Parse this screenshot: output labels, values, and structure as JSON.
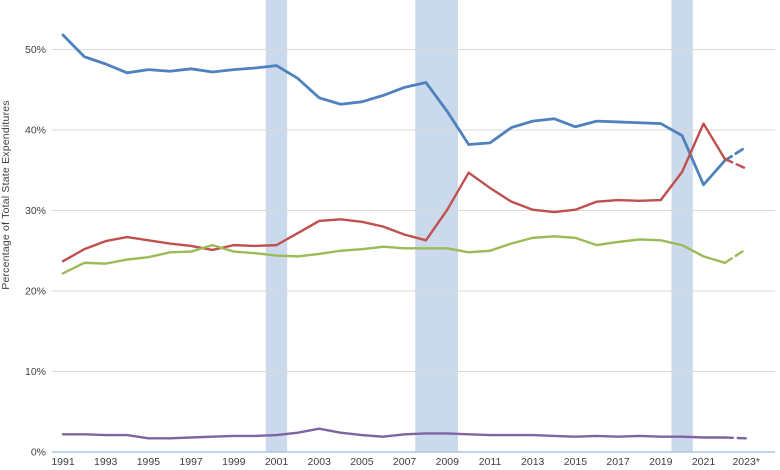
{
  "chart_data": {
    "type": "line",
    "title": "",
    "ylabel": "Percentage of Total State Expenditures",
    "xlabel": "",
    "legend": "none",
    "grid": "horizontal",
    "ylim": [
      0,
      56
    ],
    "dashed_last_segment": true,
    "x": [
      1991,
      1992,
      1993,
      1994,
      1995,
      1996,
      1997,
      1998,
      1999,
      2000,
      2001,
      2002,
      2003,
      2004,
      2005,
      2006,
      2007,
      2008,
      2009,
      2010,
      2011,
      2012,
      2013,
      2014,
      2015,
      2016,
      2017,
      2018,
      2019,
      2020,
      2021,
      2022,
      2023
    ],
    "x_ticks": [
      {
        "year": 1991,
        "label": "1991"
      },
      {
        "year": 1993,
        "label": "1993"
      },
      {
        "year": 1995,
        "label": "1995"
      },
      {
        "year": 1997,
        "label": "1997"
      },
      {
        "year": 1999,
        "label": "1999"
      },
      {
        "year": 2001,
        "label": "2001"
      },
      {
        "year": 2003,
        "label": "2003"
      },
      {
        "year": 2005,
        "label": "2005"
      },
      {
        "year": 2007,
        "label": "2007"
      },
      {
        "year": 2009,
        "label": "2009"
      },
      {
        "year": 2011,
        "label": "2011"
      },
      {
        "year": 2013,
        "label": "2013"
      },
      {
        "year": 2015,
        "label": "2015"
      },
      {
        "year": 2017,
        "label": "2017"
      },
      {
        "year": 2019,
        "label": "2019"
      },
      {
        "year": 2021,
        "label": "2021"
      },
      {
        "year": 2023,
        "label": "2023*"
      }
    ],
    "y_ticks": [
      {
        "value": 0,
        "label": "0%"
      },
      {
        "value": 10,
        "label": "10%"
      },
      {
        "value": 20,
        "label": "20%"
      },
      {
        "value": 30,
        "label": "30%"
      },
      {
        "value": 40,
        "label": "40%"
      },
      {
        "value": 50,
        "label": "50%"
      }
    ],
    "series": [
      {
        "name": "blue",
        "color": "#4F81BD",
        "values": [
          51.8,
          49.1,
          48.2,
          47.1,
          47.5,
          47.3,
          47.6,
          47.2,
          47.5,
          47.7,
          48.0,
          46.4,
          44.0,
          43.2,
          43.5,
          44.3,
          45.3,
          45.9,
          42.3,
          38.2,
          38.4,
          40.3,
          41.1,
          41.4,
          40.4,
          41.1,
          41.0,
          40.9,
          40.8,
          39.3,
          33.2,
          36.2,
          37.9
        ]
      },
      {
        "name": "red",
        "color": "#C0504D",
        "values": [
          23.7,
          25.2,
          26.2,
          26.7,
          26.3,
          25.9,
          25.6,
          25.1,
          25.7,
          25.6,
          25.7,
          27.2,
          28.7,
          28.9,
          28.6,
          28.0,
          27.0,
          26.3,
          30.1,
          34.7,
          32.8,
          31.1,
          30.1,
          29.8,
          30.1,
          31.1,
          31.3,
          31.2,
          31.3,
          34.8,
          40.8,
          36.4,
          35.2
        ]
      },
      {
        "name": "green",
        "color": "#9BBB59",
        "values": [
          22.2,
          23.5,
          23.4,
          23.9,
          24.2,
          24.8,
          24.9,
          25.7,
          24.9,
          24.7,
          24.4,
          24.3,
          24.6,
          25.0,
          25.2,
          25.5,
          25.3,
          25.3,
          25.3,
          24.8,
          25.0,
          25.9,
          26.6,
          26.8,
          26.6,
          25.7,
          26.1,
          26.4,
          26.3,
          25.7,
          24.3,
          23.5,
          25.2
        ]
      },
      {
        "name": "purple",
        "color": "#8064A2",
        "values": [
          2.2,
          2.2,
          2.1,
          2.1,
          1.7,
          1.7,
          1.8,
          1.9,
          2.0,
          2.0,
          2.1,
          2.4,
          2.9,
          2.4,
          2.1,
          1.9,
          2.2,
          2.3,
          2.3,
          2.2,
          2.1,
          2.1,
          2.1,
          2.0,
          1.9,
          2.0,
          1.9,
          2.0,
          1.9,
          1.9,
          1.8,
          1.8,
          1.7
        ]
      }
    ],
    "recession_bands": {
      "color": "#CBD9EC",
      "year_ranges": [
        [
          2000.5,
          2001.5
        ],
        [
          2007.5,
          2009.5
        ],
        [
          2019.5,
          2020.5
        ]
      ]
    },
    "axis_line_color": "#A9C7E5",
    "gridline_color": "#D9D9D9",
    "text_color": "#3F3F3F"
  }
}
